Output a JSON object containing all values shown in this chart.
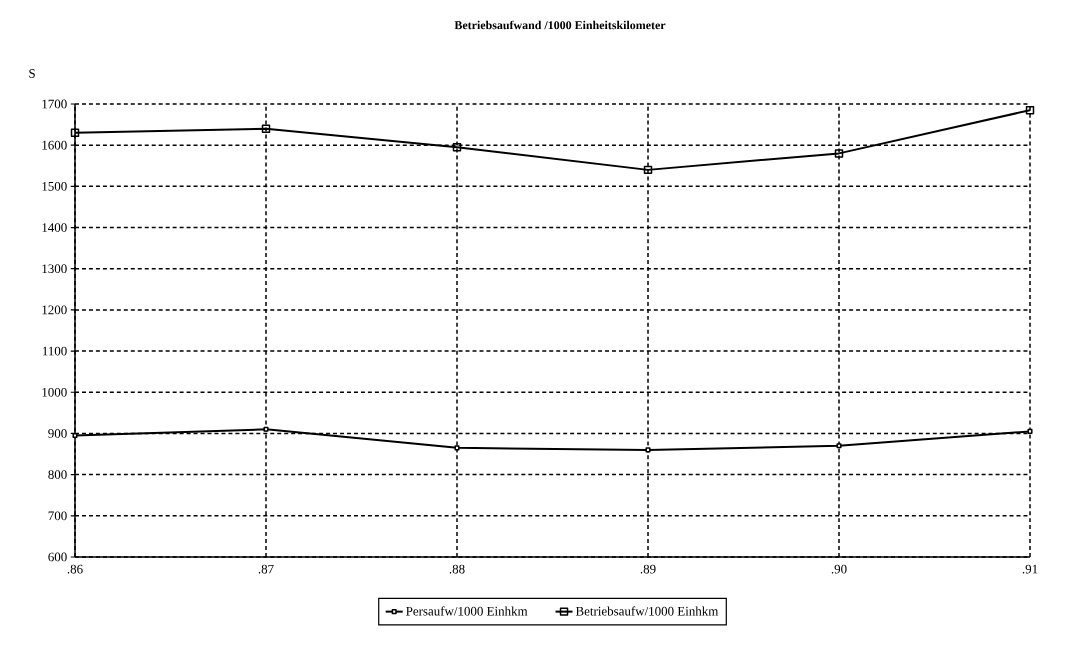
{
  "chart_data": {
    "type": "line",
    "title": "Betriebsaufwand /1000 Einheitskilometer",
    "ylabel": "S",
    "categories": [
      ".86",
      ".87",
      ".88",
      ".89",
      ".90",
      ".91"
    ],
    "series": [
      {
        "name": "Persaufw/1000 Einhkm",
        "color": "#000000",
        "marker": "square",
        "values": [
          895,
          910,
          865,
          860,
          870,
          905
        ]
      },
      {
        "name": "Betriebsaufw/1000 Einhkm",
        "color": "#000000",
        "marker": "square",
        "values": [
          1630,
          1640,
          1595,
          1540,
          1580,
          1685
        ]
      }
    ],
    "ylim": [
      600,
      1700
    ],
    "yticks": [
      600,
      700,
      800,
      900,
      1000,
      1100,
      1200,
      1300,
      1400,
      1500,
      1600,
      1700
    ],
    "grid": true,
    "legend": "bottom",
    "line_style": "solid"
  }
}
